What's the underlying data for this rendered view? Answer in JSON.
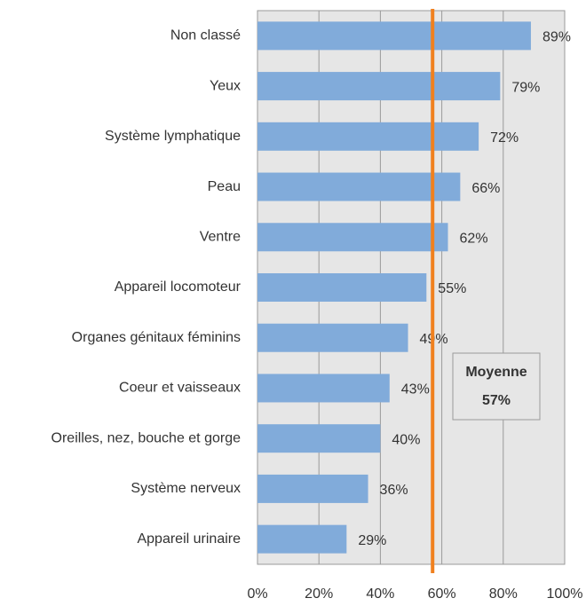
{
  "chart_data": {
    "type": "bar",
    "orientation": "horizontal",
    "categories": [
      "Non classé",
      "Yeux",
      "Système lymphatique",
      "Peau",
      "Ventre",
      "Appareil locomoteur",
      "Organes génitaux féminins",
      "Coeur et vaisseaux",
      "Oreilles, nez, bouche et gorge",
      "Système nerveux",
      "Appareil urinaire"
    ],
    "values": [
      89,
      79,
      72,
      66,
      62,
      55,
      49,
      43,
      40,
      36,
      29
    ],
    "value_labels": [
      "89%",
      "79%",
      "72%",
      "66%",
      "62%",
      "55%",
      "49%",
      "43%",
      "40%",
      "36%",
      "29%"
    ],
    "color": "#81abda",
    "xlim": [
      0,
      100
    ],
    "xticks": [
      {
        "value": 0,
        "label": "0%"
      },
      {
        "value": 20,
        "label": "20%"
      },
      {
        "value": 40,
        "label": "40%"
      },
      {
        "value": 60,
        "label": "60%"
      },
      {
        "value": 80,
        "label": "80%"
      },
      {
        "value": 100,
        "label": "100%"
      }
    ],
    "grid": true,
    "average_line": {
      "value": 57,
      "label": "Moyenne",
      "value_label": "57%",
      "color": "#f0801e"
    }
  }
}
